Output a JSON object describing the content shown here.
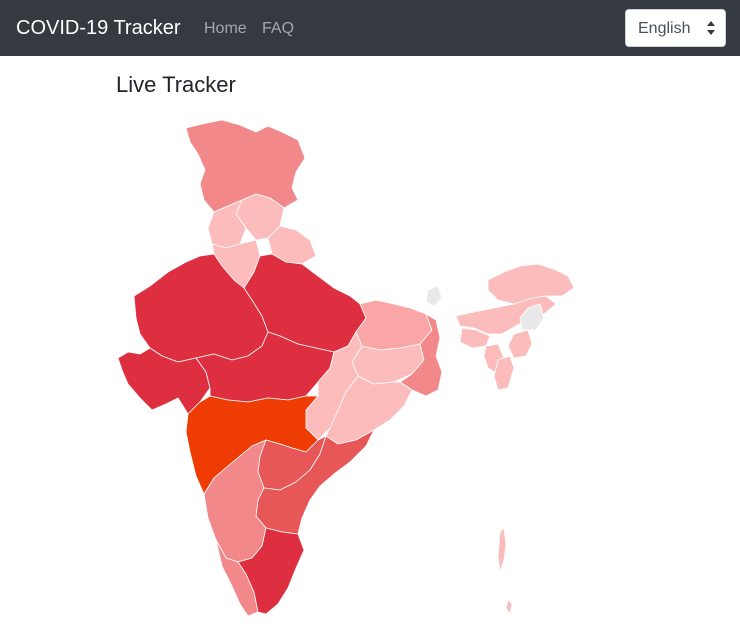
{
  "navbar": {
    "brand": "COVID-19 Tracker",
    "links": [
      "Home",
      "FAQ"
    ],
    "language": {
      "selected": "English"
    }
  },
  "main": {
    "title": "Live Tracker"
  },
  "map": {
    "country": "India",
    "colors": {
      "highest": "#ee3c03",
      "very_high": "#de2f40",
      "high": "#e85758",
      "medium": "#f3888a",
      "low": "#fba6a6",
      "very_low": "#fcbcbc",
      "no_data": "#e9e9e9"
    }
  }
}
